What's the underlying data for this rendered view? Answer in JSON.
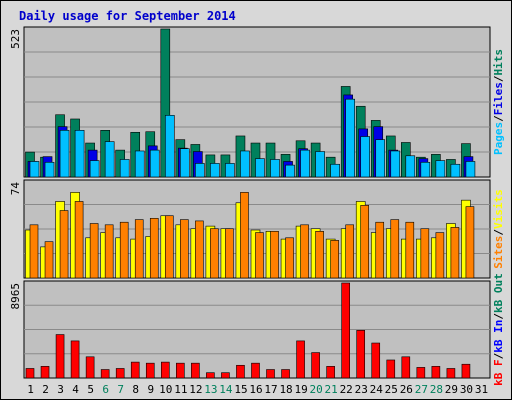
{
  "title": "Daily usage for September 2014",
  "colors": {
    "hits": "#00805c",
    "files": "#0000e6",
    "pages": "#00c0ff",
    "visits": "#ffff00",
    "sites": "#ff8000",
    "kb_f": "#ff0000",
    "kb_in": "#0000ff",
    "kb_out": "#00805c",
    "weekend_day": "#00805c"
  },
  "chart_data": [
    {
      "type": "bar",
      "panel": "hits-files-pages",
      "ymax_label": "523",
      "ylim": [
        0,
        523
      ],
      "grid": true,
      "categories": [
        "1",
        "2",
        "3",
        "4",
        "5",
        "6",
        "7",
        "8",
        "9",
        "10",
        "11",
        "12",
        "13",
        "14",
        "15",
        "16",
        "17",
        "18",
        "19",
        "20",
        "21",
        "22",
        "23",
        "24",
        "25",
        "26",
        "27",
        "28",
        "29",
        "30",
        "31"
      ],
      "right_label_parts": [
        {
          "text": "Pages",
          "key": "pages"
        },
        {
          "text": "/",
          "key": "sep"
        },
        {
          "text": "Files",
          "key": "files"
        },
        {
          "text": "/",
          "key": "sep"
        },
        {
          "text": "Hits",
          "key": "hits"
        }
      ],
      "series": [
        {
          "name": "Hits",
          "values": [
            88,
            70,
            220,
            205,
            120,
            165,
            95,
            158,
            160,
            523,
            132,
            115,
            78,
            78,
            145,
            120,
            120,
            80,
            128,
            120,
            70,
            320,
            250,
            200,
            145,
            122,
            70,
            80,
            62,
            118,
            0
          ]
        },
        {
          "name": "Files",
          "values": [
            55,
            72,
            178,
            0,
            95,
            0,
            0,
            0,
            110,
            0,
            102,
            90,
            0,
            0,
            0,
            0,
            0,
            55,
            100,
            0,
            0,
            290,
            170,
            178,
            95,
            0,
            65,
            0,
            0,
            72,
            0
          ]
        },
        {
          "name": "Pages",
          "values": [
            55,
            52,
            165,
            165,
            58,
            125,
            62,
            92,
            95,
            218,
            100,
            48,
            48,
            48,
            92,
            65,
            62,
            42,
            95,
            90,
            45,
            275,
            143,
            132,
            92,
            75,
            52,
            58,
            45,
            55,
            0
          ]
        }
      ]
    },
    {
      "type": "bar",
      "panel": "visits-sites",
      "ymax_label": "74",
      "ylim": [
        0,
        74
      ],
      "grid": true,
      "categories": [
        "1",
        "2",
        "3",
        "4",
        "5",
        "6",
        "7",
        "8",
        "9",
        "10",
        "11",
        "12",
        "13",
        "14",
        "15",
        "16",
        "17",
        "18",
        "19",
        "20",
        "21",
        "22",
        "23",
        "24",
        "25",
        "26",
        "27",
        "28",
        "29",
        "30",
        "31"
      ],
      "right_label_parts": [
        {
          "text": "Sites",
          "key": "sites"
        },
        {
          "text": "/",
          "key": "sep"
        },
        {
          "text": "Visits",
          "key": "visits"
        }
      ],
      "series": [
        {
          "name": "Visits",
          "values": [
            37,
            24,
            59,
            66,
            31,
            35,
            31,
            30,
            32,
            48,
            41,
            38,
            40,
            38,
            58,
            37,
            36,
            30,
            40,
            38,
            30,
            38,
            59,
            35,
            38,
            30,
            30,
            31,
            42,
            60,
            0
          ]
        },
        {
          "name": "Sites",
          "values": [
            41,
            28,
            52,
            59,
            42,
            41,
            43,
            45,
            46,
            48,
            45,
            44,
            38,
            38,
            66,
            35,
            36,
            31,
            41,
            36,
            29,
            41,
            56,
            43,
            45,
            43,
            38,
            35,
            39,
            55,
            0
          ]
        }
      ]
    },
    {
      "type": "bar",
      "panel": "kbf-kbin-kbout",
      "ymax_label": "8965",
      "ylim": [
        0,
        8965
      ],
      "grid": true,
      "categories": [
        "1",
        "2",
        "3",
        "4",
        "5",
        "6",
        "7",
        "8",
        "9",
        "10",
        "11",
        "12",
        "13",
        "14",
        "15",
        "16",
        "17",
        "18",
        "19",
        "20",
        "21",
        "22",
        "23",
        "24",
        "25",
        "26",
        "27",
        "28",
        "29",
        "30",
        "31"
      ],
      "right_label_parts": [
        {
          "text": "kB F",
          "key": "kb_f"
        },
        {
          "text": "/",
          "key": "sep"
        },
        {
          "text": "kB In",
          "key": "kb_in"
        },
        {
          "text": "/",
          "key": "sep"
        },
        {
          "text": "kB Out",
          "key": "kb_out"
        }
      ],
      "series": [
        {
          "name": "kB F",
          "values": [
            900,
            1100,
            4100,
            3500,
            2000,
            800,
            900,
            1500,
            1400,
            1500,
            1400,
            1400,
            500,
            500,
            1200,
            1400,
            800,
            800,
            3500,
            2400,
            1100,
            8965,
            4500,
            3300,
            1700,
            2000,
            1000,
            1100,
            900,
            1300,
            0
          ]
        }
      ]
    }
  ],
  "x_axis": {
    "labels": [
      "1",
      "2",
      "3",
      "4",
      "5",
      "6",
      "7",
      "8",
      "9",
      "10",
      "11",
      "12",
      "13",
      "14",
      "15",
      "16",
      "17",
      "18",
      "19",
      "20",
      "21",
      "22",
      "23",
      "24",
      "25",
      "26",
      "27",
      "28",
      "29",
      "30",
      "31"
    ],
    "weekend_days": [
      "6",
      "7",
      "13",
      "14",
      "20",
      "21",
      "27",
      "28"
    ]
  }
}
